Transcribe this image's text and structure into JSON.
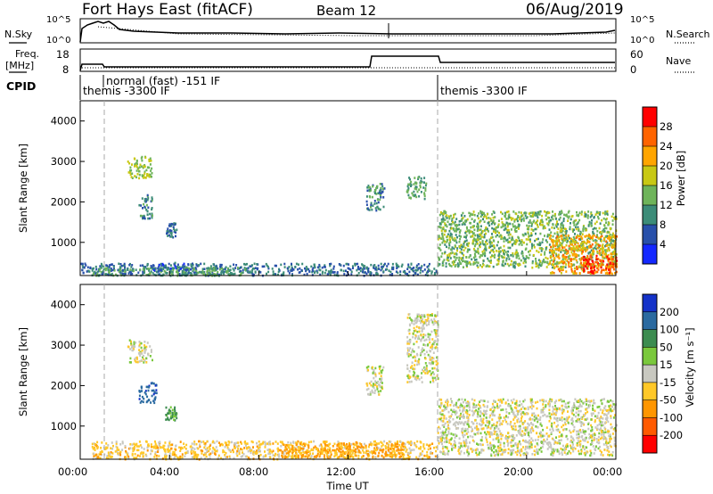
{
  "header": {
    "station": "Fort Hays East (fitACF)",
    "beam": "Beam 12",
    "date": "06/Aug/2019"
  },
  "noise_panel": {
    "left_label": "N.Sky",
    "right_label": "N.Search",
    "left_ticks": [
      "10^5",
      "10^0"
    ],
    "right_ticks": [
      "10^5",
      "10^0"
    ]
  },
  "freq_panel": {
    "left_label_line1": "Freq.",
    "left_label_line2": "[MHz]",
    "right_label": "Nave",
    "left_ticks": [
      "18",
      "8"
    ],
    "right_ticks": [
      "60",
      "0"
    ]
  },
  "cpid": {
    "label": "CPID",
    "segments": [
      {
        "start_h": 0,
        "end_h": 16,
        "text": "themis -3300 IF"
      },
      {
        "start_h": 1,
        "end_h": 16,
        "text": "normal (fast) -151 IF"
      },
      {
        "start_h": 16,
        "end_h": 24,
        "text": "themis -3300 IF"
      }
    ]
  },
  "axes": {
    "xlabel": "Time UT",
    "x_ticks": [
      "00:00",
      "04:00",
      "08:00",
      "12:00",
      "16:00",
      "20:00",
      "00:00"
    ],
    "ylabel": "Slant Range [km]",
    "y_ticks": [
      "1000",
      "2000",
      "3000",
      "4000"
    ]
  },
  "power_colorbar": {
    "label": "Power [dB]",
    "ticks": [
      "4",
      "8",
      "12",
      "16",
      "20",
      "24",
      "28"
    ],
    "colors": [
      "#1428ff",
      "#2850aa",
      "#3c8c78",
      "#6eb45a",
      "#c8c814",
      "#ffa500",
      "#ff6400",
      "#ff0000"
    ]
  },
  "velocity_colorbar": {
    "label": "Velocity [m s⁻¹]",
    "ticks": [
      "200",
      "100",
      "50",
      "15",
      "-15",
      "-50",
      "-100",
      "-200"
    ],
    "colors": [
      "#1432c8",
      "#2a6aa0",
      "#3c8c50",
      "#7ac83c",
      "#c8c8c0",
      "#ffc828",
      "#ff9600",
      "#ff5a00",
      "#ff0000"
    ]
  },
  "chart_data": [
    {
      "type": "heatmap",
      "title": "Power [dB]",
      "xlabel": "Time UT",
      "ylabel": "Slant Range [km]",
      "xlim_hours": [
        0,
        24
      ],
      "ylim_km": [
        180,
        4500
      ],
      "color_ticks": [
        4,
        8,
        12,
        16,
        20,
        24,
        28
      ],
      "echo_regions": [
        {
          "t0": 0.0,
          "t1": 16.0,
          "r0": 200,
          "r1": 500,
          "value": 8
        },
        {
          "t0": 0.5,
          "t1": 7.5,
          "r0": 200,
          "r1": 400,
          "value": 12
        },
        {
          "t0": 3.0,
          "t1": 5.0,
          "r0": 330,
          "r1": 520,
          "value": 6
        },
        {
          "t0": 2.1,
          "t1": 3.2,
          "r0": 2600,
          "r1": 3150,
          "value": 16
        },
        {
          "t0": 2.6,
          "t1": 3.2,
          "r0": 1600,
          "r1": 2200,
          "value": 10
        },
        {
          "t0": 3.8,
          "t1": 4.3,
          "r0": 1150,
          "r1": 1500,
          "value": 8
        },
        {
          "t0": 12.8,
          "t1": 13.6,
          "r0": 1800,
          "r1": 2500,
          "value": 10
        },
        {
          "t0": 14.6,
          "t1": 15.5,
          "r0": 2100,
          "r1": 2650,
          "value": 12
        },
        {
          "t0": 16.0,
          "t1": 24.0,
          "r0": 400,
          "r1": 1800,
          "value": 14
        },
        {
          "t0": 21.0,
          "t1": 24.0,
          "r0": 250,
          "r1": 1200,
          "value": 22
        },
        {
          "t0": 22.5,
          "t1": 24.0,
          "r0": 250,
          "r1": 700,
          "value": 28
        }
      ]
    },
    {
      "type": "heatmap",
      "title": "Velocity [m s⁻¹]",
      "xlabel": "Time UT",
      "ylabel": "Slant Range [km]",
      "xlim_hours": [
        0,
        24
      ],
      "ylim_km": [
        180,
        4500
      ],
      "color_ticks": [
        200,
        100,
        50,
        15,
        -15,
        -50,
        -100,
        -200
      ],
      "echo_regions": [
        {
          "t0": 0.5,
          "t1": 16.0,
          "r0": 200,
          "r1": 650,
          "value": -30
        },
        {
          "t0": 9.0,
          "t1": 14.5,
          "r0": 250,
          "r1": 600,
          "value": -60
        },
        {
          "t0": 2.1,
          "t1": 3.2,
          "r0": 2600,
          "r1": 3150,
          "value": 0
        },
        {
          "t0": 2.6,
          "t1": 3.4,
          "r0": 1600,
          "r1": 2100,
          "value": 180
        },
        {
          "t0": 3.8,
          "t1": 4.3,
          "r0": 1150,
          "r1": 1500,
          "value": 60
        },
        {
          "t0": 12.8,
          "t1": 13.6,
          "r0": 1800,
          "r1": 2500,
          "value": 0
        },
        {
          "t0": 14.6,
          "t1": 16.0,
          "r0": 2100,
          "r1": 3800,
          "value": 0
        },
        {
          "t0": 16.0,
          "t1": 24.0,
          "r0": 300,
          "r1": 1700,
          "value": 0
        }
      ]
    }
  ]
}
